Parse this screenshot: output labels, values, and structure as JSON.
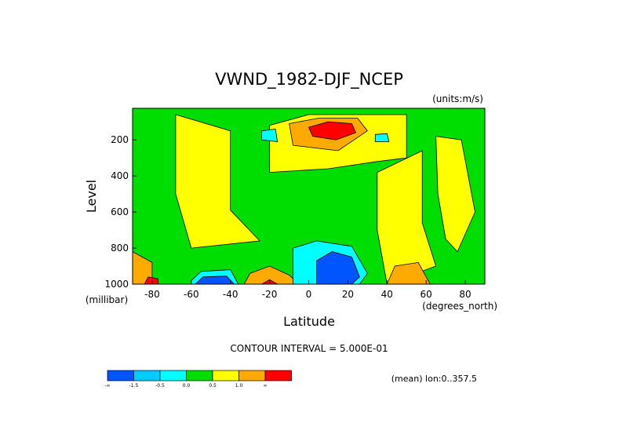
{
  "chart_data": {
    "type": "heatmap",
    "title": "VWND_1982-DJF_NCEP",
    "units_note": "(units:m/s)",
    "xlabel": "Latitude",
    "x_units": "(degrees_north)",
    "ylabel": "Level",
    "y_units": "(millibar)",
    "xlim": [
      -90,
      90
    ],
    "ylim": [
      1000,
      25
    ],
    "x_ticks": [
      -80,
      -60,
      -40,
      -20,
      0,
      20,
      40,
      60,
      80
    ],
    "y_ticks": [
      200,
      400,
      600,
      800,
      1000
    ],
    "contour_interval_text": "CONTOUR INTERVAL = 5.000E-01",
    "footnote": "(mean) lon:0..357.5",
    "colorbar": {
      "colors": [
        "#0055ff",
        "#00ccff",
        "#00ffff",
        "#00dd00",
        "#ffff00",
        "#ffaa00",
        "#ff0000"
      ],
      "labels": [
        "-∞",
        "-1.5",
        "-0.5",
        "0.0",
        "0.5",
        "1.0",
        "∞"
      ]
    },
    "regions": [
      {
        "level": "positive",
        "color": "#ffff00",
        "description_points": [
          [
            -68,
            60
          ],
          [
            -40,
            150
          ],
          [
            -40,
            590
          ],
          [
            -25,
            760
          ],
          [
            -60,
            800
          ],
          [
            -68,
            500
          ]
        ]
      },
      {
        "level": "positive",
        "color": "#ffff00",
        "points": [
          [
            -20,
            120
          ],
          [
            0,
            60
          ],
          [
            50,
            60
          ],
          [
            50,
            300
          ],
          [
            35,
            320
          ],
          [
            10,
            360
          ],
          [
            -20,
            380
          ]
        ]
      },
      {
        "level": "positive",
        "color": "#ffff00",
        "points": [
          [
            35,
            380
          ],
          [
            58,
            260
          ],
          [
            58,
            660
          ],
          [
            65,
            900
          ],
          [
            40,
            1000
          ],
          [
            35,
            700
          ]
        ]
      },
      {
        "level": "positive",
        "color": "#ffff00",
        "points": [
          [
            65,
            180
          ],
          [
            78,
            200
          ],
          [
            85,
            600
          ],
          [
            76,
            820
          ],
          [
            70,
            750
          ],
          [
            66,
            500
          ]
        ]
      },
      {
        "level": "high",
        "color": "#ffaa00",
        "points": [
          [
            -10,
            110
          ],
          [
            5,
            80
          ],
          [
            25,
            80
          ],
          [
            30,
            150
          ],
          [
            15,
            260
          ],
          [
            -8,
            230
          ]
        ]
      },
      {
        "level": "high",
        "color": "#ffaa00",
        "points": [
          [
            -33,
            1000
          ],
          [
            -30,
            940
          ],
          [
            -20,
            900
          ],
          [
            -10,
            950
          ],
          [
            -5,
            1000
          ]
        ]
      },
      {
        "level": "high",
        "color": "#ffaa00",
        "points": [
          [
            40,
            1000
          ],
          [
            44,
            900
          ],
          [
            56,
            880
          ],
          [
            62,
            1000
          ]
        ]
      },
      {
        "level": "high",
        "color": "#ffaa00",
        "points": [
          [
            -90,
            820
          ],
          [
            -80,
            880
          ],
          [
            -80,
            1000
          ],
          [
            -90,
            1000
          ]
        ]
      },
      {
        "level": "max",
        "color": "#ff0000",
        "points": [
          [
            0,
            130
          ],
          [
            10,
            100
          ],
          [
            22,
            110
          ],
          [
            24,
            160
          ],
          [
            14,
            200
          ],
          [
            2,
            180
          ]
        ]
      },
      {
        "level": "max",
        "color": "#ff0000",
        "points": [
          [
            -84,
            1000
          ],
          [
            -82,
            960
          ],
          [
            -77,
            970
          ],
          [
            -77,
            1000
          ]
        ]
      },
      {
        "level": "max",
        "color": "#ff0000",
        "points": [
          [
            -24,
            1000
          ],
          [
            -20,
            975
          ],
          [
            -16,
            1000
          ]
        ]
      },
      {
        "level": "low",
        "color": "#00ffff",
        "points": [
          [
            -8,
            800
          ],
          [
            4,
            760
          ],
          [
            22,
            790
          ],
          [
            30,
            940
          ],
          [
            26,
            1000
          ],
          [
            -8,
            1000
          ]
        ]
      },
      {
        "level": "low",
        "color": "#00ffff",
        "points": [
          [
            -60,
            980
          ],
          [
            -55,
            930
          ],
          [
            -40,
            920
          ],
          [
            -36,
            1000
          ],
          [
            -60,
            1000
          ]
        ]
      },
      {
        "level": "low",
        "color": "#00ffff",
        "points": [
          [
            -24,
            150
          ],
          [
            -17,
            140
          ],
          [
            -16,
            210
          ],
          [
            -24,
            200
          ]
        ]
      },
      {
        "level": "low",
        "color": "#00ffff",
        "points": [
          [
            34,
            170
          ],
          [
            40,
            165
          ],
          [
            41,
            210
          ],
          [
            34,
            210
          ]
        ]
      },
      {
        "level": "min",
        "color": "#0055ff",
        "points": [
          [
            4,
            870
          ],
          [
            12,
            820
          ],
          [
            22,
            850
          ],
          [
            26,
            960
          ],
          [
            22,
            1000
          ],
          [
            4,
            1000
          ]
        ]
      },
      {
        "level": "min",
        "color": "#0055ff",
        "points": [
          [
            -58,
            1000
          ],
          [
            -54,
            960
          ],
          [
            -42,
            955
          ],
          [
            -38,
            1000
          ]
        ]
      }
    ]
  }
}
